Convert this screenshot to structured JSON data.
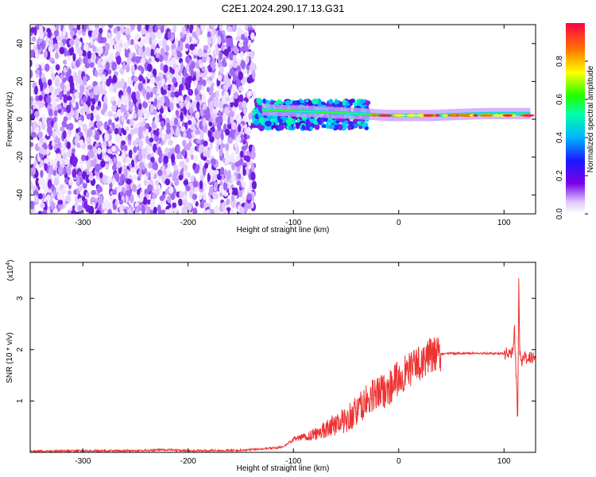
{
  "title": "C2E1.2024.290.17.13.G31",
  "chart_data": [
    {
      "type": "heatmap",
      "xlabel": "Height of straight line (km)",
      "ylabel": "Frequency (Hz)",
      "xlim": [
        -350,
        130
      ],
      "ylim": [
        -50,
        50
      ],
      "x_ticks": [
        -300,
        -200,
        -100,
        0,
        100
      ],
      "y_ticks": [
        -40,
        -20,
        0,
        20,
        40
      ],
      "colorbar": {
        "label": "Normalized spectral amplitude",
        "range": [
          0,
          1
        ],
        "ticks": [
          0.0,
          0.2,
          0.4,
          0.6,
          0.8
        ]
      },
      "regions": [
        {
          "x_range": [
            -350,
            -137
          ],
          "freq_range": [
            -50,
            50
          ],
          "amplitude": "low",
          "pattern": "scattered noise"
        },
        {
          "x_range": [
            -137,
            -30
          ],
          "freq_range": [
            -5,
            10
          ],
          "amplitude": "medium",
          "pattern": "clustered"
        },
        {
          "x_range": [
            -30,
            130
          ],
          "freq_range": [
            0,
            5
          ],
          "amplitude": "high",
          "pattern": "narrow band near 2 Hz"
        }
      ],
      "band_centers": {
        "x": [
          -130,
          -80,
          -40,
          -10,
          30,
          80,
          100,
          125
        ],
        "freq": [
          5,
          4,
          3,
          2,
          2,
          3,
          3,
          3
        ]
      }
    },
    {
      "type": "line",
      "xlabel": "Height of straight line (km)",
      "ylabel": "SNR (10 * v/v)",
      "y_scale_label": "(x10",
      "y_scale_exp": "4",
      "y_scale_close": ")",
      "xlim": [
        -350,
        130
      ],
      "ylim": [
        0,
        3.7
      ],
      "x_ticks": [
        -300,
        -200,
        -100,
        0,
        100
      ],
      "y_ticks": [
        1,
        2,
        3
      ],
      "color": "#ee3333",
      "series": [
        {
          "x": [
            -350,
            -300,
            -250,
            -220,
            -200,
            -150,
            -110,
            -100,
            -90,
            -80,
            -70,
            -60,
            -50,
            -40,
            -30,
            -20,
            -10,
            0,
            10,
            20,
            30,
            40,
            60,
            80,
            100,
            108,
            110,
            113,
            114,
            115,
            116,
            120,
            130
          ],
          "y": [
            0.02,
            0.03,
            0.03,
            0.05,
            0.03,
            0.04,
            0.1,
            0.25,
            0.3,
            0.35,
            0.45,
            0.55,
            0.65,
            0.8,
            1.0,
            1.15,
            1.25,
            1.45,
            1.6,
            1.75,
            1.88,
            1.92,
            1.93,
            1.93,
            1.92,
            1.95,
            2.4,
            0.6,
            3.3,
            2.0,
            1.75,
            1.85,
            1.85
          ]
        }
      ]
    }
  ]
}
